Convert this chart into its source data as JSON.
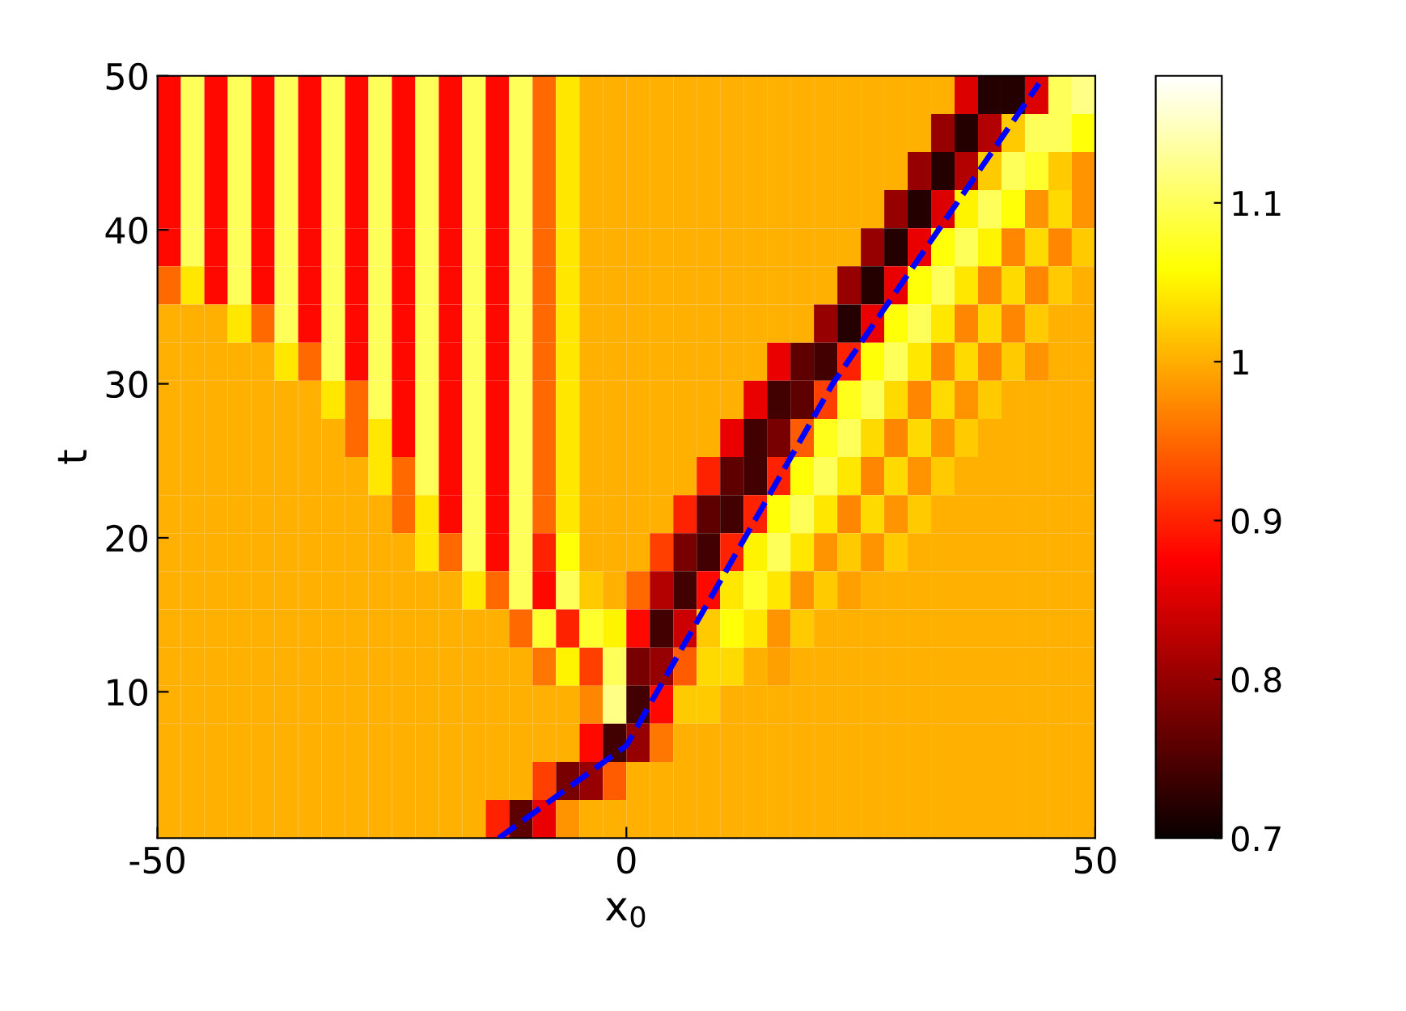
{
  "chart_data": {
    "type": "heatmap",
    "xlabel": "x$_{0}$",
    "ylabel": "t",
    "xlim": [
      -50,
      50
    ],
    "ylim": [
      0.5,
      50
    ],
    "xticks": [
      -50,
      0,
      50
    ],
    "yticks": [
      10,
      20,
      30,
      40,
      50
    ],
    "clim": [
      0.7,
      1.18
    ],
    "cticks": [
      0.7,
      0.8,
      0.9,
      1,
      1.1
    ],
    "grid": false,
    "cells": [
      [
        0.88,
        1.1,
        0.88,
        1.1,
        0.88,
        1.1,
        0.88,
        1.1,
        0.88,
        1.1,
        0.88,
        1.1,
        0.88,
        1.1,
        0.88,
        1.1,
        0.95,
        1.04,
        1,
        1,
        1,
        1,
        1,
        1,
        1,
        1,
        1,
        1,
        1,
        1,
        1,
        1,
        1,
        1,
        0.85,
        0.72,
        0.72,
        0.85,
        1.1,
        1.12
      ],
      [
        0.88,
        1.1,
        0.88,
        1.1,
        0.88,
        1.1,
        0.88,
        1.1,
        0.88,
        1.1,
        0.88,
        1.1,
        0.88,
        1.1,
        0.88,
        1.1,
        0.95,
        1.04,
        1,
        1,
        1,
        1,
        1,
        1,
        1,
        1,
        1,
        1,
        1,
        1,
        1,
        1,
        1,
        0.8,
        0.72,
        0.82,
        1.02,
        1.1,
        1.1,
        1.06
      ],
      [
        0.88,
        1.1,
        0.88,
        1.1,
        0.88,
        1.1,
        0.88,
        1.1,
        0.88,
        1.1,
        0.88,
        1.1,
        0.88,
        1.1,
        0.88,
        1.1,
        0.95,
        1.04,
        1,
        1,
        1,
        1,
        1,
        1,
        1,
        1,
        1,
        1,
        1,
        1,
        1,
        1,
        0.8,
        0.72,
        0.82,
        1.02,
        1.1,
        1.08,
        1.02,
        0.98
      ],
      [
        0.88,
        1.1,
        0.88,
        1.1,
        0.88,
        1.1,
        0.88,
        1.1,
        0.88,
        1.1,
        0.88,
        1.1,
        0.88,
        1.1,
        0.88,
        1.1,
        0.95,
        1.04,
        1,
        1,
        1,
        1,
        1,
        1,
        1,
        1,
        1,
        1,
        1,
        1,
        1,
        0.8,
        0.72,
        0.85,
        1.05,
        1.1,
        1.06,
        0.98,
        1.03,
        0.98
      ],
      [
        0.88,
        1.1,
        0.88,
        1.1,
        0.88,
        1.1,
        0.88,
        1.1,
        0.88,
        1.1,
        0.88,
        1.1,
        0.88,
        1.1,
        0.88,
        1.1,
        0.95,
        1.04,
        1,
        1,
        1,
        1,
        1,
        1,
        1,
        1,
        1,
        1,
        1,
        1,
        0.8,
        0.72,
        0.86,
        1.06,
        1.1,
        1.05,
        0.97,
        1.03,
        0.97,
        1.02
      ],
      [
        0.95,
        1.04,
        0.88,
        1.1,
        0.88,
        1.1,
        0.88,
        1.1,
        0.88,
        1.1,
        0.88,
        1.1,
        0.88,
        1.1,
        0.88,
        1.1,
        0.95,
        1.04,
        1,
        1,
        1,
        1,
        1,
        1,
        1,
        1,
        1,
        1,
        1,
        0.8,
        0.72,
        0.86,
        1.06,
        1.1,
        1.04,
        0.97,
        1.03,
        0.97,
        1.02,
        1
      ],
      [
        1,
        1,
        1,
        1.04,
        0.95,
        1.1,
        0.88,
        1.1,
        0.88,
        1.1,
        0.88,
        1.1,
        0.88,
        1.1,
        0.88,
        1.1,
        0.95,
        1.04,
        1,
        1,
        1,
        1,
        1,
        1,
        1,
        1,
        1,
        1,
        0.8,
        0.72,
        0.86,
        1.06,
        1.1,
        1.04,
        0.97,
        1.03,
        0.97,
        1.02,
        1,
        1
      ],
      [
        1,
        1,
        1,
        1,
        1,
        1.04,
        0.95,
        1.1,
        0.88,
        1.1,
        0.88,
        1.1,
        0.88,
        1.1,
        0.88,
        1.1,
        0.95,
        1.04,
        1,
        1,
        1,
        1,
        1,
        1,
        1,
        1,
        0.86,
        0.76,
        0.74,
        0.9,
        1.06,
        1.1,
        1.04,
        0.97,
        1.03,
        0.97,
        1.02,
        0.98,
        1,
        1
      ],
      [
        1,
        1,
        1,
        1,
        1,
        1,
        1,
        1.04,
        0.95,
        1.1,
        0.88,
        1.1,
        0.88,
        1.1,
        0.88,
        1.1,
        0.95,
        1.04,
        1,
        1,
        1,
        1,
        1,
        1,
        1,
        0.86,
        0.74,
        0.76,
        0.92,
        1.07,
        1.1,
        1.03,
        0.97,
        1.03,
        0.98,
        1.02,
        1,
        1,
        1,
        1
      ],
      [
        1,
        1,
        1,
        1,
        1,
        1,
        1,
        1,
        0.95,
        1.04,
        0.88,
        1.1,
        0.88,
        1.1,
        0.88,
        1.1,
        0.95,
        1.04,
        1,
        1,
        1,
        1,
        1,
        1,
        0.86,
        0.74,
        0.78,
        0.94,
        1.07,
        1.1,
        1.03,
        0.97,
        1.03,
        0.98,
        1.02,
        1,
        1,
        1,
        1,
        1
      ],
      [
        1,
        1,
        1,
        1,
        1,
        1,
        1,
        1,
        1,
        1.04,
        0.95,
        1.1,
        0.88,
        1.1,
        0.88,
        1.1,
        0.95,
        1.04,
        1,
        1,
        1,
        1,
        1,
        0.9,
        0.76,
        0.74,
        0.9,
        1.06,
        1.1,
        1.04,
        0.97,
        1.03,
        0.98,
        1.02,
        1,
        1,
        1,
        1,
        1,
        1
      ],
      [
        1,
        1,
        1,
        1,
        1,
        1,
        1,
        1,
        1,
        1,
        0.95,
        1.04,
        0.88,
        1.1,
        0.88,
        1.1,
        0.95,
        1.04,
        1,
        1,
        1,
        1,
        0.9,
        0.76,
        0.74,
        0.9,
        1.06,
        1.1,
        1.04,
        0.97,
        1.03,
        0.98,
        1.02,
        1,
        1,
        1,
        1,
        1,
        1,
        1
      ],
      [
        1,
        1,
        1,
        1,
        1,
        1,
        1,
        1,
        1,
        1,
        1,
        1.04,
        0.95,
        1.1,
        0.88,
        1.1,
        0.9,
        1.06,
        1,
        1,
        1,
        0.92,
        0.78,
        0.74,
        0.9,
        1.05,
        1.1,
        1.04,
        0.98,
        1.02,
        0.98,
        1.02,
        1,
        1,
        1,
        1,
        1,
        1,
        1,
        1
      ],
      [
        1,
        1,
        1,
        1,
        1,
        1,
        1,
        1,
        1,
        1,
        1,
        1,
        1,
        1.04,
        0.95,
        1.1,
        0.88,
        1.1,
        1.02,
        1,
        0.95,
        0.82,
        0.74,
        0.88,
        1.04,
        1.08,
        1.04,
        0.98,
        1.02,
        0.99,
        1,
        1,
        1,
        1,
        1,
        1,
        1,
        1,
        1,
        1
      ],
      [
        1,
        1,
        1,
        1,
        1,
        1,
        1,
        1,
        1,
        1,
        1,
        1,
        1,
        1,
        1,
        0.95,
        1.08,
        0.9,
        1.08,
        1.05,
        0.88,
        0.74,
        0.84,
        1.02,
        1.06,
        1.04,
        0.98,
        1.02,
        1,
        1,
        1,
        1,
        1,
        1,
        1,
        1,
        1,
        1,
        1,
        1
      ],
      [
        1,
        1,
        1,
        1,
        1,
        1,
        1,
        1,
        1,
        1,
        1,
        1,
        1,
        1,
        1,
        1,
        0.96,
        1.05,
        0.92,
        1.1,
        0.78,
        0.8,
        0.94,
        1.03,
        1.03,
        1,
        0.99,
        1,
        1,
        1,
        1,
        1,
        1,
        1,
        1,
        1,
        1,
        1,
        1,
        1
      ],
      [
        1,
        1,
        1,
        1,
        1,
        1,
        1,
        1,
        1,
        1,
        1,
        1,
        1,
        1,
        1,
        1,
        1,
        1,
        0.97,
        1.12,
        0.74,
        0.88,
        1.02,
        1.02,
        1,
        1,
        1,
        1,
        1,
        1,
        1,
        1,
        1,
        1,
        1,
        1,
        1,
        1,
        1,
        1
      ],
      [
        1,
        1,
        1,
        1,
        1,
        1,
        1,
        1,
        1,
        1,
        1,
        1,
        1,
        1,
        1,
        1,
        1,
        1,
        0.88,
        0.74,
        0.8,
        0.96,
        1,
        1,
        1,
        1,
        1,
        1,
        1,
        1,
        1,
        1,
        1,
        1,
        1,
        1,
        1,
        1,
        1,
        1
      ],
      [
        1,
        1,
        1,
        1,
        1,
        1,
        1,
        1,
        1,
        1,
        1,
        1,
        1,
        1,
        1,
        1,
        0.92,
        0.78,
        0.8,
        0.94,
        1,
        1,
        1,
        1,
        1,
        1,
        1,
        1,
        1,
        1,
        1,
        1,
        1,
        1,
        1,
        1,
        1,
        1,
        1,
        1
      ],
      [
        1,
        1,
        1,
        1,
        1,
        1,
        1,
        1,
        1,
        1,
        1,
        1,
        1,
        1,
        0.9,
        0.76,
        0.86,
        0.98,
        1,
        1,
        1,
        1,
        1,
        1,
        1,
        1,
        1,
        1,
        1,
        1,
        1,
        1,
        1,
        1,
        1,
        1,
        1,
        1,
        1,
        1
      ]
    ],
    "series": [
      {
        "type": "line",
        "color": "#0000ff",
        "line_style": "dashed",
        "x": [
          -13.6,
          0,
          22,
          44
        ],
        "values": [
          0.5,
          6.5,
          30,
          49.5
        ]
      }
    ]
  }
}
